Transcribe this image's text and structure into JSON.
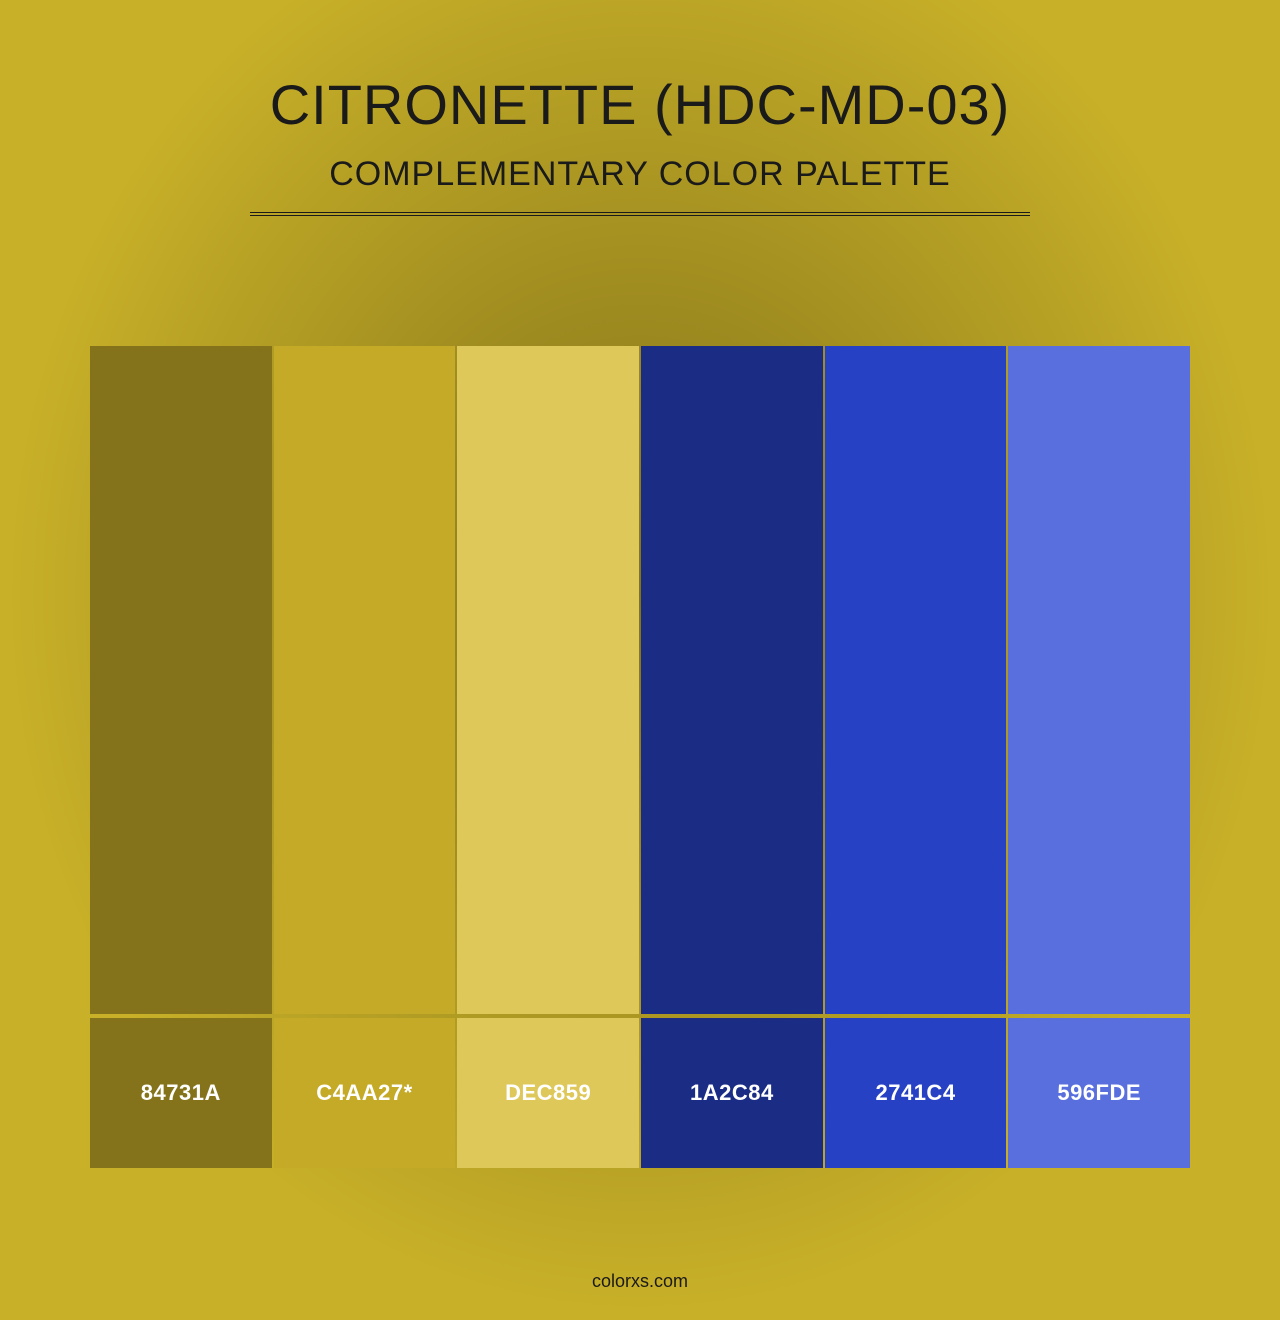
{
  "header": {
    "title": "CITRONETTE (HDC-MD-03)",
    "subtitle": "COMPLEMENTARY COLOR PALETTE"
  },
  "background_color": "#c8b028",
  "palette": {
    "swatches": [
      {
        "hex": "#84731A",
        "label": "84731A"
      },
      {
        "hex": "#C4AA27",
        "label": "C4AA27*"
      },
      {
        "hex": "#DEC859",
        "label": "DEC859"
      },
      {
        "hex": "#1A2C84",
        "label": "1A2C84"
      },
      {
        "hex": "#2741C4",
        "label": "2741C4"
      },
      {
        "hex": "#596FDE",
        "label": "596FDE"
      }
    ],
    "label_text_color": "#ffffff",
    "gap_color": "#c8b028"
  },
  "footer": {
    "text": "colorxs.com"
  }
}
